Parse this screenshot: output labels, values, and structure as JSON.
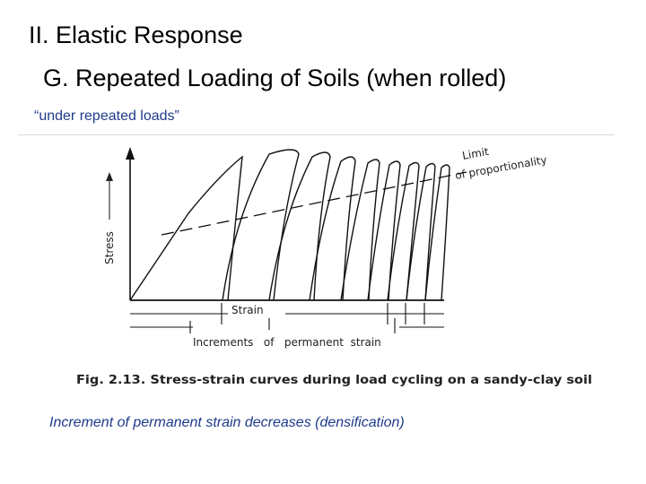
{
  "slide": {
    "title": "II. Elastic Response",
    "subtitle": "G. Repeated Loading of Soils (when rolled)",
    "caption": "“under repeated loads”",
    "note": "Increment of permanent strain decreases (densification)"
  },
  "figure": {
    "y_axis_label": "Stress",
    "x_axis_label": "Strain",
    "increments_label": "Increments   of   permanent  strain",
    "limit_label_line1": "Limit",
    "limit_label_line2": "of  proportionality",
    "caption": "Fig. 2.13. Stress-strain curves during load cycling on a sandy-clay soil"
  }
}
